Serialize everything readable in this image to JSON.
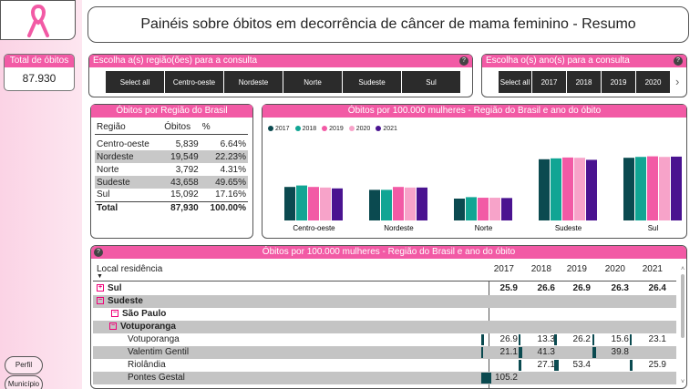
{
  "header": {
    "title": "Painéis sobre óbitos em decorrência de câncer de mama feminino - Resumo"
  },
  "total_card": {
    "label": "Total de óbitos",
    "value": "87.930"
  },
  "nav": {
    "perfil": "Perfil",
    "municipio": "Município"
  },
  "region_slicer": {
    "title": "Escolha a(s) região(ões) para a consulta",
    "options": [
      "Select all",
      "Centro-oeste",
      "Nordeste",
      "Norte",
      "Sudeste",
      "Sul"
    ]
  },
  "year_slicer": {
    "title": "Escolha o(s) ano(s) para a consulta",
    "options": [
      "Select all",
      "2017",
      "2018",
      "2019",
      "2020"
    ]
  },
  "region_table": {
    "title": "Óbitos por Região do Brasil",
    "headers": [
      "Região",
      "Óbitos",
      "%"
    ],
    "rows": [
      [
        "Centro-oeste",
        "5,839",
        "6.64%"
      ],
      [
        "Nordeste",
        "19,549",
        "22.23%"
      ],
      [
        "Norte",
        "3,792",
        "4.31%"
      ],
      [
        "Sudeste",
        "43,658",
        "49.65%"
      ],
      [
        "Sul",
        "15,092",
        "17.16%"
      ],
      [
        "Total",
        "87,930",
        "100.00%"
      ]
    ]
  },
  "chart_panel": {
    "title": "Óbitos por 100.000 mulheres - Região do Brasil e ano do óbito"
  },
  "chart_data": {
    "type": "bar",
    "categories": [
      "Centro-oeste",
      "Nordeste",
      "Norte",
      "Sudeste",
      "Sul"
    ],
    "series": [
      {
        "name": "2017",
        "color": "#0b4a50",
        "values": [
          11.5,
          10.5,
          7.5,
          21.0,
          21.5
        ]
      },
      {
        "name": "2018",
        "color": "#11a594",
        "values": [
          12.0,
          10.5,
          8.0,
          21.3,
          21.8
        ]
      },
      {
        "name": "2019",
        "color": "#f25aa5",
        "values": [
          11.5,
          11.5,
          7.8,
          21.6,
          22.0
        ]
      },
      {
        "name": "2020",
        "color": "#f7a3c9",
        "values": [
          11.3,
          11.3,
          7.8,
          21.5,
          21.8
        ]
      },
      {
        "name": "2021",
        "color": "#4a1390",
        "values": [
          11.0,
          11.3,
          7.7,
          20.8,
          21.9
        ]
      }
    ],
    "ylim": [
      0,
      25
    ]
  },
  "matrix": {
    "title": "Óbitos por 100.000 mulheres - Região do Brasil e ano do óbito",
    "col_header": "Local residência",
    "years": [
      "2017",
      "2018",
      "2019",
      "2020",
      "2021"
    ],
    "rows": [
      {
        "label": "Sul",
        "level": 0,
        "sign": "+",
        "values": [
          "25.9",
          "26.6",
          "26.9",
          "26.3",
          "26.4"
        ],
        "bold": true,
        "gray": false
      },
      {
        "label": "Sudeste",
        "level": 0,
        "sign": "−",
        "values": [
          "",
          "",
          "",
          "",
          ""
        ],
        "bold": true,
        "gray": true
      },
      {
        "label": "São Paulo",
        "level": 1,
        "sign": "−",
        "values": [
          "",
          "",
          "",
          "",
          ""
        ],
        "bold": true,
        "gray": false
      },
      {
        "label": "Votuporanga",
        "level": 2,
        "sign": "−",
        "values": [
          "",
          "",
          "",
          "",
          ""
        ],
        "bold": true,
        "gray": true
      },
      {
        "label": "Votuporanga",
        "level": 3,
        "sign": "",
        "values": [
          "26.9",
          "13.3",
          "26.2",
          "15.6",
          "23.1"
        ],
        "bold": false,
        "gray": false
      },
      {
        "label": "Valentim Gentil",
        "level": 3,
        "sign": "",
        "values": [
          "21.1",
          "41.3",
          "",
          "39.8",
          ""
        ],
        "bold": false,
        "gray": true
      },
      {
        "label": "Riolândia",
        "level": 3,
        "sign": "",
        "values": [
          "",
          "27.1",
          "53.4",
          "",
          "25.9"
        ],
        "bold": false,
        "gray": false
      },
      {
        "label": "Pontes Gestal",
        "level": 3,
        "sign": "",
        "values": [
          "105.2",
          "",
          "",
          "",
          ""
        ],
        "bold": false,
        "gray": true
      }
    ]
  }
}
